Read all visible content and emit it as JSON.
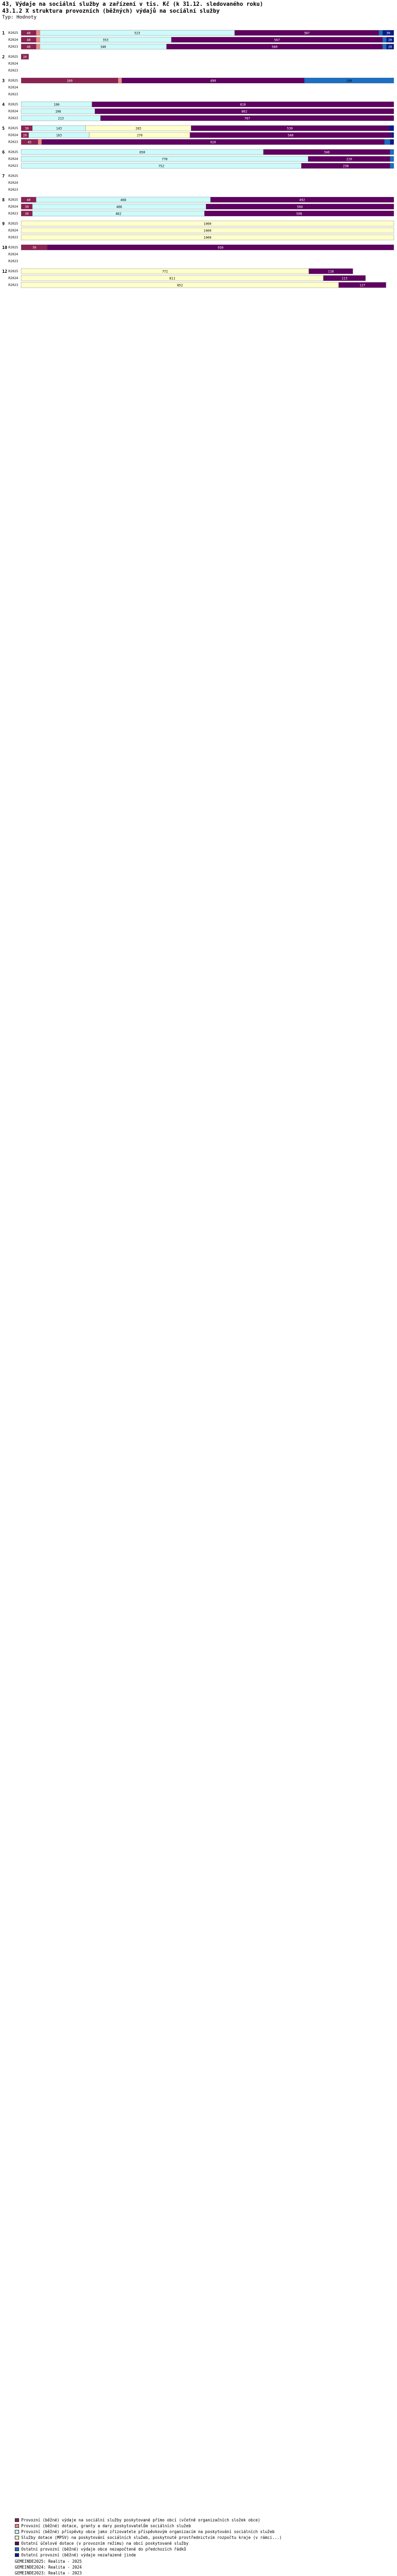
{
  "header": {
    "title": "43, Výdaje na sociální služby a zařízení v tis. Kč (k 31.12. sledovaného roku)",
    "subtitle": "43.1.2 X struktura provozních (běžných) výdajů na sociální služby",
    "unit": "Typ: Hodnoty"
  },
  "colors": {
    "c1": "#8b2252",
    "c2": "#ee8888",
    "c3": "#cdfafa",
    "c4": "#ffffcc",
    "c5": "#600060",
    "c6": "#1c6fc4",
    "c7": "#0a1a8a"
  },
  "chart_data": {
    "type": "bar",
    "orientation": "horizontal",
    "stacked": true,
    "series_names": [
      "Provozní (běžné) výdaje na sociální služby poskytované přímo obcí (včetně organizačních složek obce)",
      "Provozní (běžné) dotace, granty a dary poskytovatelům sociálních služeb",
      "Provozní (běžné) příspěvky obce jako zřizovatele příspěvkovým organizacím na poskytování sociálních služeb",
      "Služby dotace (MPSV) na poskytování sociálních služeb, poskytnuté prostřednictvím rozpočtu kraje (v rámci...)",
      "Ostatní účelové dotace (v provozním režimu) na obcí poskytované služby",
      "Ostatní provozní (běžné) výdaje obce nezapočtené do předchozích řádků",
      "Ostatní provozní (běžné) výdaje nezařazené jinde"
    ],
    "groups": [
      {
        "id": "1",
        "rows": [
          {
            "year": "R2025",
            "values": [
              40,
              10,
              523,
              0,
              387,
              10,
              30
            ]
          },
          {
            "year": "R2024",
            "values": [
              40,
              10,
              353,
              0,
              567,
              10,
              20
            ]
          },
          {
            "year": "R2023",
            "values": [
              40,
              10,
              340,
              0,
              580,
              10,
              20
            ]
          }
        ]
      },
      {
        "id": "2",
        "rows": [
          {
            "year": "R2025",
            "values": [
              20,
              0,
              0,
              0,
              0,
              0,
              0
            ]
          },
          {
            "year": "R2024",
            "values": [
              0,
              0,
              0,
              0,
              0,
              0,
              0
            ]
          },
          {
            "year": "R2023",
            "values": [
              0,
              0,
              0,
              0,
              0,
              0,
              0
            ]
          }
        ]
      },
      {
        "id": "3",
        "rows": [
          {
            "year": "R2025",
            "values": [
              260,
              10,
              0,
              0,
              490,
              240,
              0
            ]
          },
          {
            "year": "R2024",
            "values": [
              0,
              0,
              0,
              0,
              0,
              0,
              0
            ]
          },
          {
            "year": "R2023",
            "values": [
              0,
              0,
              0,
              0,
              0,
              0,
              0
            ]
          }
        ]
      },
      {
        "id": "4",
        "rows": [
          {
            "year": "R2025",
            "values": [
              0,
              0,
              190,
              0,
              810,
              0,
              0
            ]
          },
          {
            "year": "R2024",
            "values": [
              0,
              0,
              198,
              0,
              802,
              0,
              0
            ]
          },
          {
            "year": "R2023",
            "values": [
              0,
              0,
              213,
              0,
              787,
              0,
              0
            ]
          }
        ]
      },
      {
        "id": "5",
        "rows": [
          {
            "year": "R2025",
            "values": [
              30,
              0,
              143,
              283,
              530,
              0,
              14
            ]
          },
          {
            "year": "R2024",
            "values": [
              20,
              0,
              163,
              270,
              540,
              0,
              7
            ]
          },
          {
            "year": "R2023",
            "values": [
              45,
              10,
              0,
              0,
              920,
              15,
              10
            ]
          }
        ]
      },
      {
        "id": "6",
        "rows": [
          {
            "year": "R2025",
            "values": [
              0,
              0,
              650,
              0,
              340,
              10,
              0
            ]
          },
          {
            "year": "R2024",
            "values": [
              0,
              0,
              770,
              0,
              220,
              10,
              0
            ]
          },
          {
            "year": "R2023",
            "values": [
              0,
              0,
              752,
              0,
              238,
              10,
              0
            ]
          }
        ]
      },
      {
        "id": "7",
        "rows": [
          {
            "year": "R2025",
            "values": [
              0,
              0,
              0,
              0,
              0,
              0,
              0
            ]
          },
          {
            "year": "R2024",
            "values": [
              0,
              0,
              0,
              0,
              0,
              0,
              0
            ]
          },
          {
            "year": "R2023",
            "values": [
              0,
              0,
              0,
              0,
              0,
              0,
              0
            ]
          }
        ]
      },
      {
        "id": "8",
        "rows": [
          {
            "year": "R2025",
            "values": [
              40,
              0,
              468,
              0,
              492,
              0,
              0
            ]
          },
          {
            "year": "R2024",
            "values": [
              30,
              0,
              466,
              0,
              504,
              0,
              0
            ]
          },
          {
            "year": "R2023",
            "values": [
              30,
              0,
              462,
              0,
              508,
              0,
              0
            ]
          }
        ]
      },
      {
        "id": "9",
        "rows": [
          {
            "year": "R2025",
            "values": [
              0,
              0,
              0,
              1000,
              0,
              0,
              0
            ]
          },
          {
            "year": "R2024",
            "values": [
              0,
              0,
              0,
              1000,
              0,
              0,
              0
            ]
          },
          {
            "year": "R2023",
            "values": [
              0,
              0,
              0,
              1000,
              0,
              0,
              0
            ]
          }
        ]
      },
      {
        "id": "10",
        "rows": [
          {
            "year": "R2025",
            "values": [
              70,
              0,
              0,
              0,
              930,
              0,
              0
            ]
          },
          {
            "year": "R2024",
            "values": [
              0,
              0,
              0,
              0,
              0,
              0,
              0
            ]
          },
          {
            "year": "R2023",
            "values": [
              0,
              0,
              0,
              0,
              0,
              0,
              0
            ]
          }
        ]
      },
      {
        "id": "12",
        "rows": [
          {
            "year": "R2025",
            "values": [
              0,
              0,
              0,
              772,
              118,
              0,
              0
            ]
          },
          {
            "year": "R2024",
            "values": [
              0,
              0,
              0,
              811,
              113,
              0,
              0
            ]
          },
          {
            "year": "R2023",
            "values": [
              0,
              0,
              0,
              852,
              127,
              0,
              0
            ]
          }
        ]
      }
    ],
    "xlim": [
      0,
      1000
    ],
    "xlabel": "",
    "ylabel": ""
  },
  "footer": {
    "line1": "GEMEINDE2025: Realita - 2025",
    "line2": "GEMEINDE2024: Realita - 2024",
    "line3": "GEMEINDE2023: Realita - 2023"
  }
}
